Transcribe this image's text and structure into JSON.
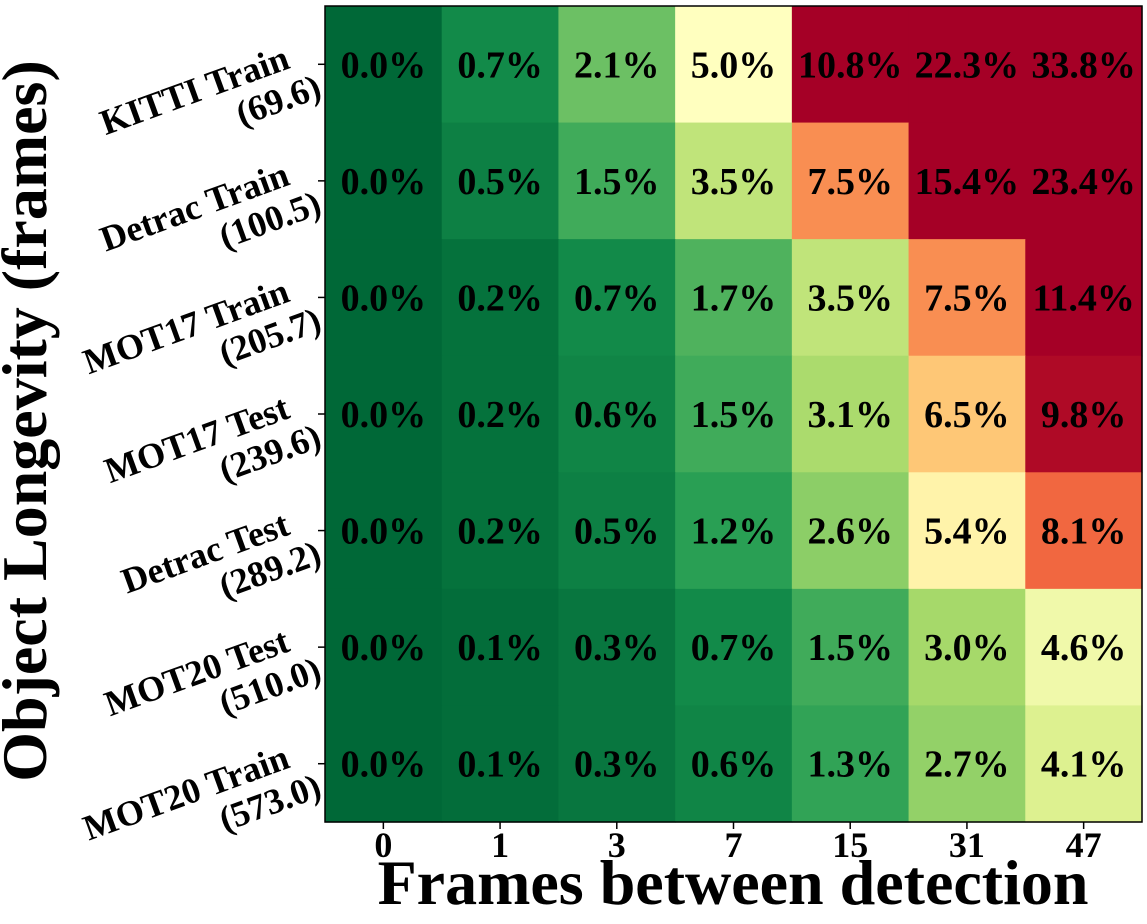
{
  "chart_data": {
    "type": "heatmap",
    "xlabel": "Frames between detection",
    "ylabel": "Object Longevity (frames)",
    "x_categories": [
      "0",
      "1",
      "3",
      "7",
      "15",
      "31",
      "47"
    ],
    "y_categories": [
      {
        "name": "KITTI Train",
        "value": "(69.6)"
      },
      {
        "name": "Detrac Train",
        "value": "(100.5)"
      },
      {
        "name": "MOT17 Train",
        "value": "(205.7)"
      },
      {
        "name": "MOT17 Test",
        "value": "(239.6)"
      },
      {
        "name": "Detrac Test",
        "value": "(289.2)"
      },
      {
        "name": "MOT20 Test",
        "value": "(510.0)"
      },
      {
        "name": "MOT20 Train",
        "value": "(573.0)"
      }
    ],
    "values": [
      [
        0.0,
        0.7,
        2.1,
        5.0,
        10.8,
        22.3,
        33.8
      ],
      [
        0.0,
        0.5,
        1.5,
        3.5,
        7.5,
        15.4,
        23.4
      ],
      [
        0.0,
        0.2,
        0.7,
        1.7,
        3.5,
        7.5,
        11.4
      ],
      [
        0.0,
        0.2,
        0.6,
        1.5,
        3.1,
        6.5,
        9.8
      ],
      [
        0.0,
        0.2,
        0.5,
        1.2,
        2.6,
        5.4,
        8.1
      ],
      [
        0.0,
        0.1,
        0.3,
        0.7,
        1.5,
        3.0,
        4.6
      ],
      [
        0.0,
        0.1,
        0.3,
        0.6,
        1.3,
        2.7,
        4.1
      ]
    ],
    "value_labels": [
      [
        "0.0%",
        "0.7%",
        "2.1%",
        "5.0%",
        "10.8%",
        "22.3%",
        "33.8%"
      ],
      [
        "0.0%",
        "0.5%",
        "1.5%",
        "3.5%",
        "7.5%",
        "15.4%",
        "23.4%"
      ],
      [
        "0.0%",
        "0.2%",
        "0.7%",
        "1.7%",
        "3.5%",
        "7.5%",
        "11.4%"
      ],
      [
        "0.0%",
        "0.2%",
        "0.6%",
        "1.5%",
        "3.1%",
        "6.5%",
        "9.8%"
      ],
      [
        "0.0%",
        "0.2%",
        "0.5%",
        "1.2%",
        "2.6%",
        "5.4%",
        "8.1%"
      ],
      [
        "0.0%",
        "0.1%",
        "0.3%",
        "0.7%",
        "1.5%",
        "3.0%",
        "4.6%"
      ],
      [
        "0.0%",
        "0.1%",
        "0.3%",
        "0.6%",
        "1.3%",
        "2.7%",
        "4.1%"
      ]
    ],
    "colormap": "RdYlGn_r",
    "color_range": [
      0,
      10
    ],
    "grid": false
  }
}
